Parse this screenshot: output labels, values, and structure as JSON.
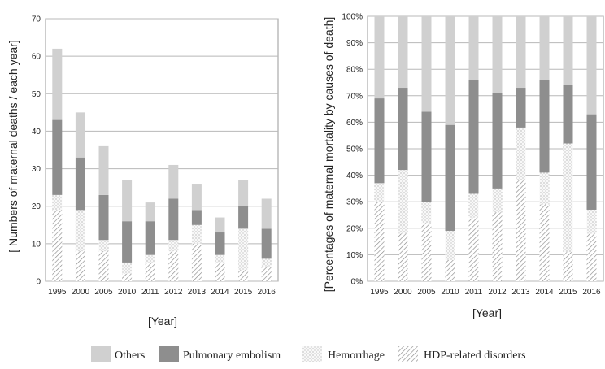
{
  "chart_data": [
    {
      "type": "bar",
      "stacked": true,
      "categories": [
        "1995",
        "2000",
        "2005",
        "2010",
        "2011",
        "2012",
        "2013",
        "2014",
        "2015",
        "2016"
      ],
      "series": [
        {
          "name": "HDP-related disorders",
          "values": [
            19,
            8,
            8,
            2,
            5,
            8,
            10,
            5,
            3,
            4
          ]
        },
        {
          "name": "Hemorrhage",
          "values": [
            4,
            11,
            3,
            3,
            2,
            3,
            5,
            2,
            11,
            2
          ]
        },
        {
          "name": "Pulmonary embolism",
          "values": [
            20,
            14,
            12,
            11,
            9,
            11,
            4,
            6,
            6,
            8
          ]
        },
        {
          "name": "Others",
          "values": [
            19,
            12,
            13,
            11,
            5,
            9,
            7,
            4,
            7,
            8
          ]
        }
      ],
      "xlabel": "[Year]",
      "ylabel": "[ Numbers of maternal deaths / each  year]",
      "ylim": [
        0,
        70
      ],
      "yticks": [
        "0",
        "10",
        "20",
        "30",
        "40",
        "50",
        "60",
        "70"
      ],
      "grid": true
    },
    {
      "type": "bar",
      "stacked": true,
      "percent": true,
      "categories": [
        "1995",
        "2000",
        "2005",
        "2010",
        "2011",
        "2012",
        "2013",
        "2014",
        "2015",
        "2016"
      ],
      "series": [
        {
          "name": "HDP-related disorders",
          "values": [
            30,
            18,
            22,
            8,
            24,
            26,
            38,
            29,
            11,
            18
          ]
        },
        {
          "name": "Hemorrhage",
          "values": [
            7,
            24,
            8,
            11,
            9,
            9,
            20,
            12,
            41,
            9
          ]
        },
        {
          "name": "Pulmonary embolism",
          "values": [
            32,
            31,
            34,
            40,
            43,
            36,
            15,
            35,
            22,
            36
          ]
        },
        {
          "name": "Others",
          "values": [
            31,
            27,
            36,
            41,
            24,
            29,
            27,
            24,
            26,
            37
          ]
        }
      ],
      "xlabel": "[Year]",
      "ylabel": "[Percentages of maternal mortality  by causes of death]",
      "ylim": [
        0,
        100
      ],
      "yticks": [
        "0%",
        "10%",
        "20%",
        "30%",
        "40%",
        "50%",
        "60%",
        "70%",
        "80%",
        "90%",
        "100%"
      ],
      "grid": true
    }
  ],
  "legend": {
    "placement": "bottom",
    "items": [
      "Others",
      "Pulmonary embolism",
      "Hemorrhage",
      "HDP-related disorders"
    ]
  },
  "colors": {
    "others": "#d0d0d0",
    "pulmonary": "#8e8e8e",
    "hemorrhage": "#f7f7f7",
    "hdp": "#ffffff"
  }
}
